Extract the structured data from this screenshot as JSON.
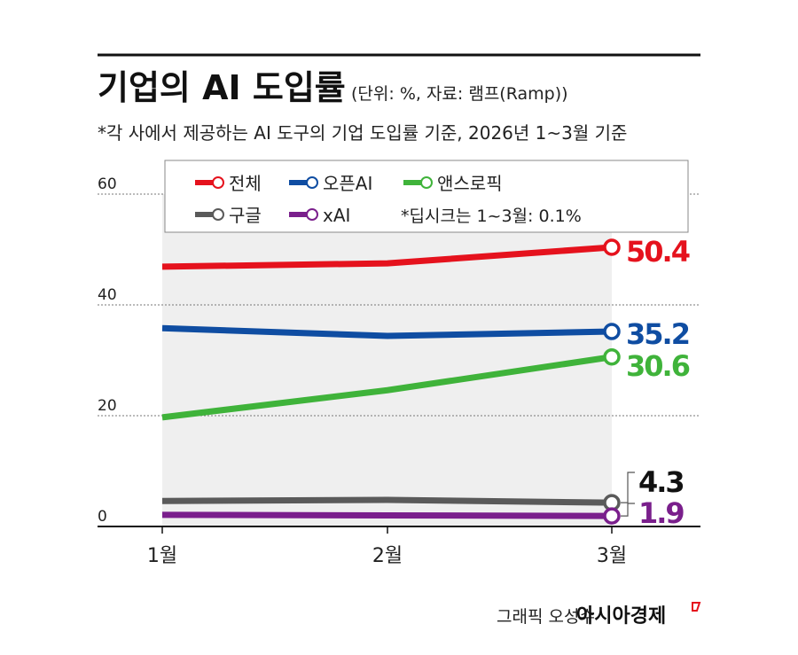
{
  "title": "기업의 AI 도입률",
  "unit_note": "(단위: %, 자료: 램프(Ramp))",
  "subtitle": "*각 사에서 제공하는 AI 도구의 기업 도입률 기준, 2026년 1~3월 기준",
  "legend_note": "*딥시크는 1~3월: 0.1%",
  "footer": {
    "credit": "그래픽 오성수",
    "brand": "아시아경제"
  },
  "chart_data": {
    "type": "line",
    "categories": [
      "1월",
      "2월",
      "3월"
    ],
    "ylim": [
      0,
      60
    ],
    "yticks": [
      0,
      20,
      40,
      60
    ],
    "grid": true,
    "legend_placement": "top",
    "series": [
      {
        "name": "전체",
        "color": "#e5121d",
        "values": [
          46.9,
          47.5,
          50.4
        ],
        "end_label": "50.4"
      },
      {
        "name": "오픈AI",
        "color": "#0f4da2",
        "values": [
          35.8,
          34.4,
          35.2
        ],
        "end_label": "35.2"
      },
      {
        "name": "앤스로픽",
        "color": "#3fb33a",
        "values": [
          19.7,
          24.6,
          30.6
        ],
        "end_label": "30.6"
      },
      {
        "name": "구글",
        "color": "#5a5a5a",
        "values": [
          4.6,
          4.8,
          4.3
        ],
        "end_label": "4.3"
      },
      {
        "name": "xAI",
        "color": "#7a1f8c",
        "values": [
          2.1,
          2.0,
          1.9
        ],
        "end_label": "1.9"
      }
    ]
  }
}
